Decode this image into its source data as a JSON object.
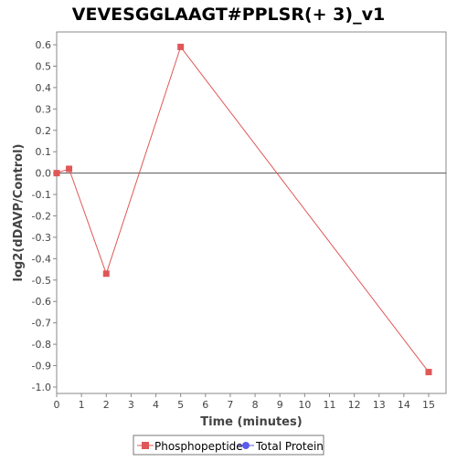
{
  "chart_data": {
    "type": "line",
    "title": "VEVESGGLAAGT#PPLSR(+ 3)_v1",
    "xlabel": "Time (minutes)",
    "ylabel": "log2(dDAVP/Control)",
    "xlim": [
      0,
      15.7
    ],
    "ylim": [
      -1.03,
      0.66
    ],
    "x_ticks": [
      0,
      1,
      2,
      3,
      4,
      5,
      6,
      7,
      8,
      9,
      10,
      11,
      12,
      13,
      14,
      15
    ],
    "y_ticks": [
      0.6,
      0.5,
      0.4,
      0.3,
      0.2,
      0.1,
      0.0,
      -0.1,
      -0.2,
      -0.3,
      -0.4,
      -0.5,
      -0.6,
      -0.7,
      -0.8,
      -0.9,
      -1.0
    ],
    "y_tick_labels": [
      "0.6",
      "0.5",
      "0.4",
      "0.3",
      "0.2",
      "0.1",
      "0.0",
      "-0.1",
      "-0.2",
      "-0.3",
      "-0.4",
      "-0.5",
      "-0.6",
      "-0.7",
      "-0.8",
      "-0.9",
      "-1.0"
    ],
    "grid": false,
    "zero_line": true,
    "legend_position": "bottom",
    "series": [
      {
        "name": "Phosphopeptide",
        "color": "#e05757",
        "marker": "square",
        "x": [
          0,
          0.5,
          2,
          5,
          15
        ],
        "y": [
          0.0,
          0.02,
          -0.47,
          0.59,
          -0.93
        ]
      },
      {
        "name": "Total Protein",
        "color": "#5b5bf0",
        "marker": "circle",
        "x": [],
        "y": []
      }
    ]
  }
}
